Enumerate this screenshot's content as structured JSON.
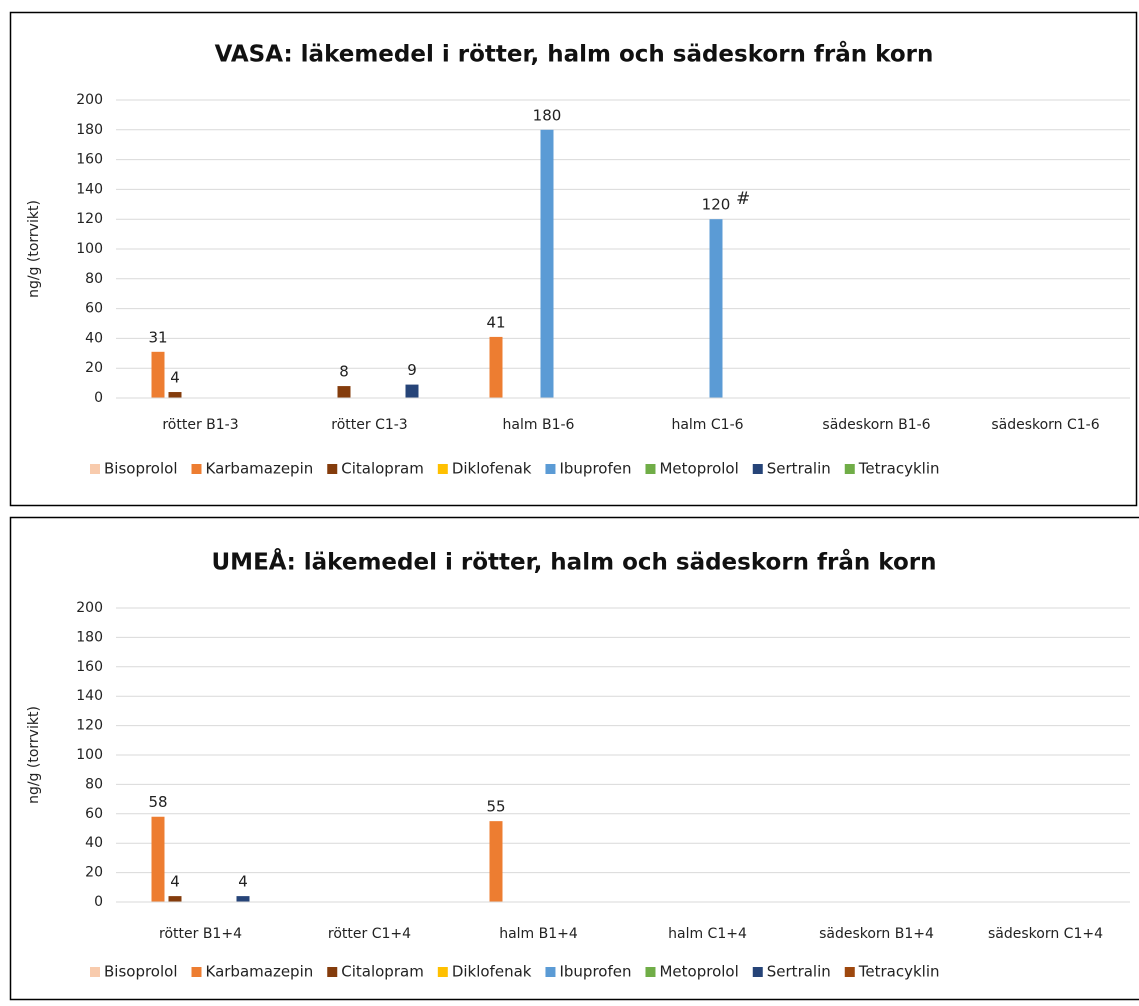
{
  "chart_data": [
    {
      "type": "bar",
      "title": "VASA: läkemedel i rötter, halm och sädeskorn från korn",
      "y_label": "ng/g (torrvikt)",
      "categories": [
        "rötter B1-3",
        "rötter C1-3",
        "halm B1-6",
        "halm C1-6",
        "sädeskorn B1-6",
        "sädeskorn C1-6"
      ],
      "series": [
        {
          "name": "Bisoprolol",
          "color": "#f8cbad",
          "values": [
            null,
            null,
            null,
            null,
            null,
            null
          ]
        },
        {
          "name": "Karbamazepin",
          "color": "#ed7d31",
          "values": [
            31,
            null,
            41,
            null,
            null,
            null
          ]
        },
        {
          "name": "Citalopram",
          "color": "#843c0c",
          "values": [
            4,
            8,
            null,
            null,
            null,
            null
          ]
        },
        {
          "name": "Diklofenak",
          "color": "#ffc000",
          "values": [
            null,
            null,
            null,
            null,
            null,
            null
          ]
        },
        {
          "name": "Ibuprofen",
          "color": "#5b9bd5",
          "values": [
            null,
            null,
            180,
            120,
            null,
            null
          ]
        },
        {
          "name": "Metoprolol",
          "color": "#70ad47",
          "values": [
            null,
            null,
            null,
            null,
            null,
            null
          ]
        },
        {
          "name": "Sertralin",
          "color": "#264478",
          "values": [
            null,
            9,
            null,
            null,
            null,
            null
          ]
        },
        {
          "name": "Tetracyklin",
          "color": "#70ad47",
          "values": [
            null,
            null,
            null,
            null,
            null,
            null
          ]
        }
      ],
      "annotations": [
        "#"
      ],
      "ylim": [
        0,
        200
      ],
      "yticks": [
        0,
        20,
        40,
        60,
        80,
        100,
        120,
        140,
        160,
        180,
        200
      ],
      "grid": true,
      "legend": "bottom"
    },
    {
      "type": "bar",
      "title": "UMEÅ: läkemedel i rötter, halm och sädeskorn från korn",
      "y_label": "ng/g (torrvikt)",
      "categories": [
        "rötter B1+4",
        "rötter C1+4",
        "halm B1+4",
        "halm  C1+4",
        "sädeskorn B1+4",
        "sädeskorn C1+4"
      ],
      "series": [
        {
          "name": "Bisoprolol",
          "color": "#f8cbad",
          "values": [
            null,
            null,
            null,
            null,
            null,
            null
          ]
        },
        {
          "name": "Karbamazepin",
          "color": "#ed7d31",
          "values": [
            58,
            null,
            55,
            null,
            null,
            null
          ]
        },
        {
          "name": "Citalopram",
          "color": "#843c0c",
          "values": [
            4,
            null,
            null,
            null,
            null,
            null
          ]
        },
        {
          "name": "Diklofenak",
          "color": "#ffc000",
          "values": [
            null,
            null,
            null,
            null,
            null,
            null
          ]
        },
        {
          "name": "Ibuprofen",
          "color": "#5b9bd5",
          "values": [
            null,
            null,
            null,
            null,
            null,
            null
          ]
        },
        {
          "name": "Metoprolol",
          "color": "#70ad47",
          "values": [
            null,
            null,
            null,
            null,
            null,
            null
          ]
        },
        {
          "name": "Sertralin",
          "color": "#264478",
          "values": [
            4,
            null,
            null,
            null,
            null,
            null
          ]
        },
        {
          "name": "Tetracyklin",
          "color": "#9e480e",
          "values": [
            null,
            null,
            null,
            null,
            null,
            null
          ]
        }
      ],
      "ylim": [
        0,
        200
      ],
      "yticks": [
        0,
        20,
        40,
        60,
        80,
        100,
        120,
        140,
        160,
        180,
        200
      ],
      "grid": true,
      "legend": "bottom"
    }
  ]
}
